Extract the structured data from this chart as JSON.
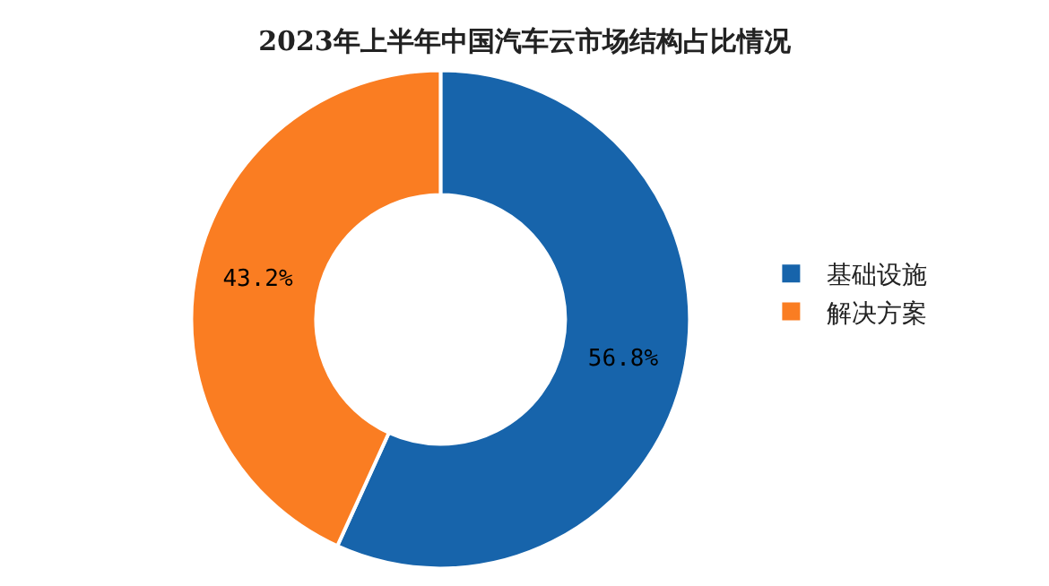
{
  "chart_data": {
    "type": "donut",
    "title": "2023年上半年中国汽车云市场结构占比情况",
    "categories": [
      "基础设施",
      "解决方案"
    ],
    "values": [
      56.8,
      43.2
    ],
    "value_labels": [
      "56.8%",
      "43.2%"
    ],
    "colors": [
      "#1764ab",
      "#fa7d22"
    ],
    "legend": "right"
  }
}
